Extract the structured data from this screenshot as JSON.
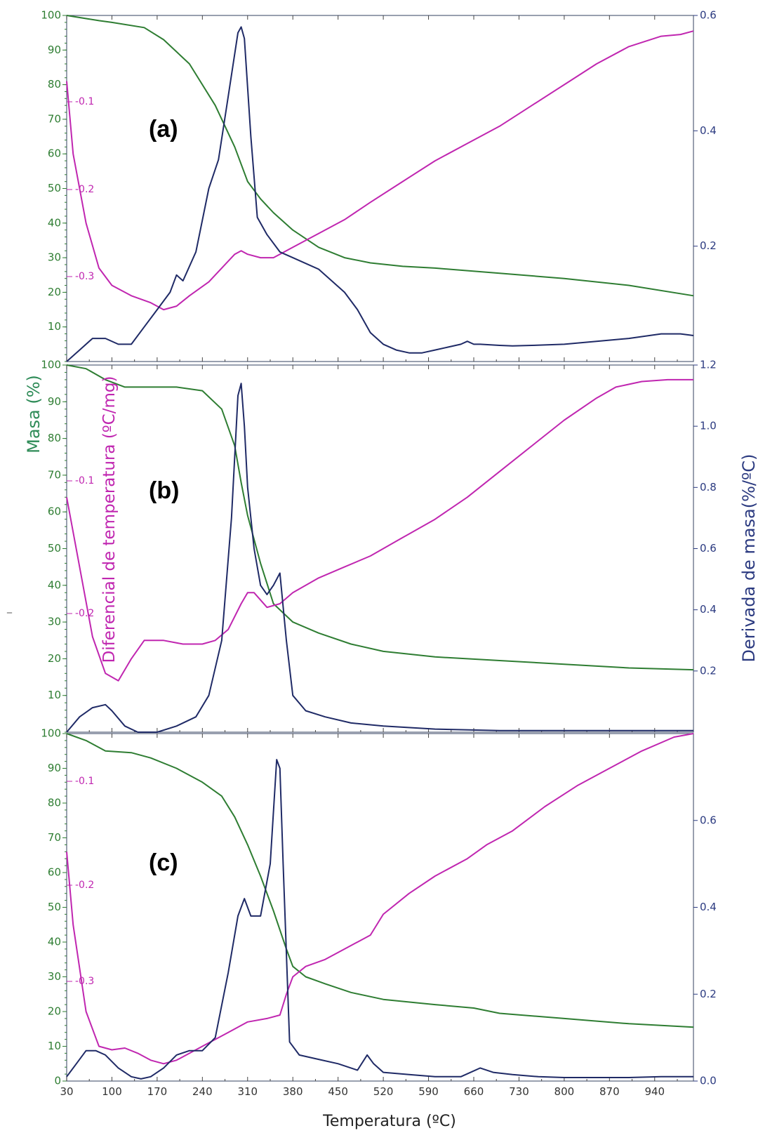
{
  "figure": {
    "left_axis_title": "Masa (%)",
    "dta_axis_title": "Diferencial de temperatura (ºC/mg)",
    "right_axis_title": "Derivada de masa(%/ºC)",
    "x_axis_title": "Temperatura (ºC)",
    "stray_mark": "_",
    "colors": {
      "mass": "#2e7d32",
      "dta": "#c026b0",
      "dtg": "#1f2a66",
      "frame": "#55607a"
    }
  },
  "chart_data": [
    {
      "type": "line",
      "panel_label": "(a)",
      "x_ticks": [
        30,
        100,
        170,
        240,
        310,
        380,
        450,
        520,
        590,
        660,
        730,
        800,
        870,
        940
      ],
      "xlim": [
        30,
        1000
      ],
      "left_ticks": [
        100,
        90,
        80,
        70,
        60,
        50,
        40,
        30,
        20,
        10
      ],
      "ylim_left": [
        0,
        100
      ],
      "right_ticks": [
        "0.6",
        "0.4",
        "0.2"
      ],
      "ylim_right": [
        0.0,
        0.6
      ],
      "dta_ticks": [
        "-0.1",
        "-0.2",
        "-0.3"
      ],
      "series": [
        {
          "name": "Masa",
          "axis": "left",
          "x": [
            30,
            80,
            100,
            150,
            180,
            220,
            260,
            290,
            310,
            330,
            350,
            380,
            420,
            460,
            500,
            550,
            600,
            700,
            800,
            900,
            1000
          ],
          "y": [
            100,
            98.5,
            98,
            96.5,
            93,
            86,
            74,
            62,
            52,
            47,
            43,
            38,
            33,
            30,
            28.5,
            27.5,
            27,
            25.5,
            24,
            22,
            19
          ]
        },
        {
          "name": "Diferencial",
          "axis": "left",
          "x": [
            30,
            40,
            60,
            80,
            100,
            130,
            160,
            180,
            200,
            220,
            250,
            270,
            290,
            300,
            310,
            330,
            350,
            380,
            420,
            460,
            500,
            550,
            600,
            650,
            700,
            750,
            800,
            850,
            900,
            950,
            980,
            1000
          ],
          "y": [
            81,
            60,
            40,
            27,
            22,
            19,
            17,
            15,
            16,
            19,
            23,
            27,
            31,
            32,
            31,
            30,
            30,
            33,
            37,
            41,
            46,
            52,
            58,
            63,
            68,
            74,
            80,
            86,
            91,
            94,
            94.5,
            95.5
          ]
        },
        {
          "name": "Derivada",
          "axis": "right",
          "x": [
            30,
            50,
            70,
            90,
            110,
            130,
            150,
            170,
            190,
            200,
            210,
            230,
            250,
            265,
            280,
            295,
            300,
            305,
            315,
            325,
            340,
            360,
            380,
            420,
            460,
            480,
            500,
            520,
            540,
            560,
            580,
            600,
            620,
            640,
            650,
            660,
            670,
            700,
            720,
            750,
            800,
            850,
            900,
            950,
            980,
            1000
          ],
          "y": [
            0.0,
            0.02,
            0.04,
            0.04,
            0.03,
            0.03,
            0.06,
            0.09,
            0.12,
            0.15,
            0.14,
            0.19,
            0.3,
            0.35,
            0.46,
            0.57,
            0.58,
            0.56,
            0.39,
            0.25,
            0.22,
            0.19,
            0.18,
            0.16,
            0.12,
            0.09,
            0.05,
            0.03,
            0.02,
            0.015,
            0.015,
            0.02,
            0.025,
            0.03,
            0.035,
            0.03,
            0.03,
            0.028,
            0.027,
            0.028,
            0.03,
            0.035,
            0.04,
            0.048,
            0.048,
            0.045
          ]
        }
      ]
    },
    {
      "type": "line",
      "panel_label": "(b)",
      "x_ticks": [
        30,
        100,
        170,
        240,
        310,
        380,
        450,
        520,
        590,
        660,
        730,
        800,
        870,
        940
      ],
      "xlim": [
        30,
        1000
      ],
      "left_ticks": [
        100,
        90,
        80,
        70,
        60,
        50,
        40,
        30,
        20,
        10
      ],
      "ylim_left": [
        0,
        100
      ],
      "right_ticks": [
        "1.2",
        "1.0",
        "0.8",
        "0.6",
        "0.4",
        "0.2"
      ],
      "ylim_right": [
        0.0,
        1.2
      ],
      "dta_ticks": [
        "-0.1",
        "-0.2"
      ],
      "series": [
        {
          "name": "Masa",
          "axis": "left",
          "x": [
            30,
            60,
            90,
            120,
            150,
            200,
            240,
            270,
            290,
            300,
            310,
            330,
            350,
            380,
            420,
            470,
            520,
            600,
            700,
            800,
            900,
            1000
          ],
          "y": [
            100,
            99,
            96,
            94,
            94,
            94,
            93,
            88,
            78,
            68,
            59,
            46,
            35,
            30,
            27,
            24,
            22,
            20.5,
            19.5,
            18.5,
            17.5,
            17
          ]
        },
        {
          "name": "Diferencial",
          "axis": "left",
          "x": [
            30,
            50,
            70,
            90,
            110,
            130,
            150,
            180,
            210,
            240,
            260,
            280,
            300,
            310,
            320,
            340,
            360,
            380,
            420,
            460,
            500,
            550,
            600,
            650,
            700,
            750,
            800,
            850,
            880,
            920,
            960,
            1000
          ],
          "y": [
            64,
            45,
            26,
            16,
            14,
            20,
            25,
            25,
            24,
            24,
            25,
            28,
            35,
            38,
            38,
            34,
            35,
            38,
            42,
            45,
            48,
            53,
            58,
            64,
            71,
            78,
            85,
            91,
            94,
            95.5,
            96,
            96
          ]
        },
        {
          "name": "Derivada",
          "axis": "right",
          "x": [
            30,
            50,
            70,
            90,
            100,
            120,
            140,
            170,
            200,
            230,
            250,
            270,
            285,
            295,
            300,
            305,
            310,
            320,
            330,
            340,
            350,
            360,
            370,
            380,
            400,
            430,
            470,
            520,
            600,
            700,
            800,
            900,
            1000
          ],
          "y": [
            0.0,
            0.05,
            0.08,
            0.09,
            0.07,
            0.02,
            0.0,
            0.0,
            0.02,
            0.05,
            0.12,
            0.3,
            0.7,
            1.1,
            1.14,
            1.0,
            0.8,
            0.6,
            0.48,
            0.45,
            0.48,
            0.52,
            0.3,
            0.12,
            0.07,
            0.05,
            0.03,
            0.02,
            0.01,
            0.005,
            0.005,
            0.005,
            0.005
          ]
        }
      ]
    },
    {
      "type": "line",
      "panel_label": "(c)",
      "x_ticks": [
        30,
        100,
        170,
        240,
        310,
        380,
        450,
        520,
        590,
        660,
        730,
        800,
        870,
        940
      ],
      "xlim": [
        30,
        1000
      ],
      "left_ticks": [
        100,
        90,
        80,
        70,
        60,
        50,
        40,
        30,
        20,
        10,
        0
      ],
      "ylim_left": [
        0,
        100
      ],
      "right_ticks": [
        "0.6",
        "0.4",
        "0.2",
        "0.0"
      ],
      "ylim_right": [
        0.0,
        0.8
      ],
      "dta_ticks": [
        "-0.1",
        "-0.2",
        "-0.3"
      ],
      "series": [
        {
          "name": "Masa",
          "axis": "left",
          "x": [
            30,
            60,
            90,
            130,
            160,
            200,
            240,
            270,
            290,
            310,
            330,
            350,
            370,
            380,
            400,
            430,
            470,
            520,
            600,
            660,
            700,
            800,
            900,
            1000
          ],
          "y": [
            100,
            98,
            95,
            94.5,
            93,
            90,
            86,
            82,
            76,
            68,
            59,
            49,
            38,
            33,
            30,
            28,
            25.5,
            23.5,
            22,
            21,
            19.5,
            18,
            16.5,
            15.5
          ]
        },
        {
          "name": "Diferencial",
          "axis": "left",
          "x": [
            30,
            40,
            60,
            80,
            100,
            120,
            140,
            160,
            180,
            200,
            240,
            280,
            310,
            340,
            360,
            370,
            380,
            400,
            430,
            460,
            500,
            520,
            560,
            600,
            650,
            680,
            720,
            770,
            820,
            870,
            920,
            970,
            1000
          ],
          "y": [
            66,
            45,
            20,
            10,
            9,
            9.5,
            8,
            6,
            5,
            6,
            10,
            14,
            17,
            18,
            19,
            25,
            30,
            33,
            35,
            38,
            42,
            48,
            54,
            59,
            64,
            68,
            72,
            79,
            85,
            90,
            95,
            99,
            100
          ]
        },
        {
          "name": "Derivada",
          "axis": "right",
          "x": [
            30,
            45,
            60,
            75,
            90,
            110,
            130,
            145,
            160,
            180,
            200,
            220,
            240,
            260,
            280,
            295,
            305,
            315,
            330,
            345,
            355,
            360,
            365,
            375,
            390,
            420,
            450,
            480,
            495,
            505,
            520,
            560,
            600,
            640,
            670,
            690,
            720,
            760,
            800,
            850,
            900,
            950,
            1000
          ],
          "y": [
            0.01,
            0.04,
            0.07,
            0.07,
            0.06,
            0.03,
            0.01,
            0.005,
            0.01,
            0.03,
            0.06,
            0.07,
            0.07,
            0.1,
            0.25,
            0.38,
            0.42,
            0.38,
            0.38,
            0.5,
            0.74,
            0.72,
            0.5,
            0.09,
            0.06,
            0.05,
            0.04,
            0.025,
            0.06,
            0.04,
            0.02,
            0.015,
            0.01,
            0.01,
            0.03,
            0.02,
            0.015,
            0.01,
            0.008,
            0.008,
            0.008,
            0.01,
            0.01
          ]
        }
      ]
    }
  ]
}
